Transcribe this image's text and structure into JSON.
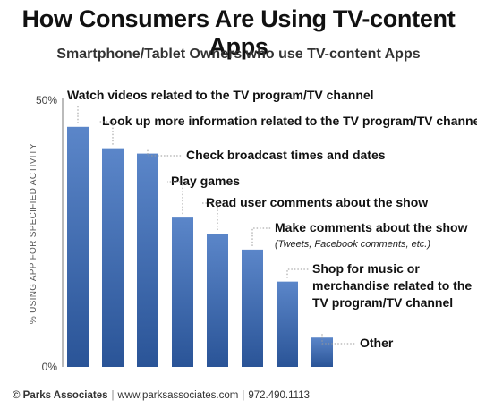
{
  "header": {
    "title": "How Consumers Are Using TV-content Apps",
    "subtitle": "Smartphone/Tablet Owners who use TV-content Apps"
  },
  "footer": {
    "company": "© Parks Associates",
    "url": "www.parksassociates.com",
    "phone": "972.490.1113"
  },
  "colors": {
    "bar_top": "#5b86c9",
    "bar_bottom": "#2a5497",
    "axis": "#777777",
    "leader": "#999999"
  },
  "chart_data": {
    "type": "bar",
    "ylabel": "% USING APP FOR SPECIFIED ACTIVITY",
    "ylim": [
      0,
      50
    ],
    "yticks": [
      "0%",
      "50%"
    ],
    "categories": [
      {
        "label": "Watch videos related to the TV program/TV channel",
        "sublabel": ""
      },
      {
        "label": "Look up more information related to the TV program/TV channel",
        "sublabel": ""
      },
      {
        "label": "Check broadcast times and dates",
        "sublabel": ""
      },
      {
        "label": "Play games",
        "sublabel": ""
      },
      {
        "label": "Read user comments about the show",
        "sublabel": ""
      },
      {
        "label": "Make comments about the show",
        "sublabel": "(Tweets, Facebook comments, etc.)"
      },
      {
        "label": "Shop for music or merchandise related to the TV program/TV channel",
        "sublabel": ""
      },
      {
        "label": "Other",
        "sublabel": ""
      }
    ],
    "values": [
      45,
      41,
      40,
      28,
      25,
      22,
      16,
      5.5
    ]
  }
}
